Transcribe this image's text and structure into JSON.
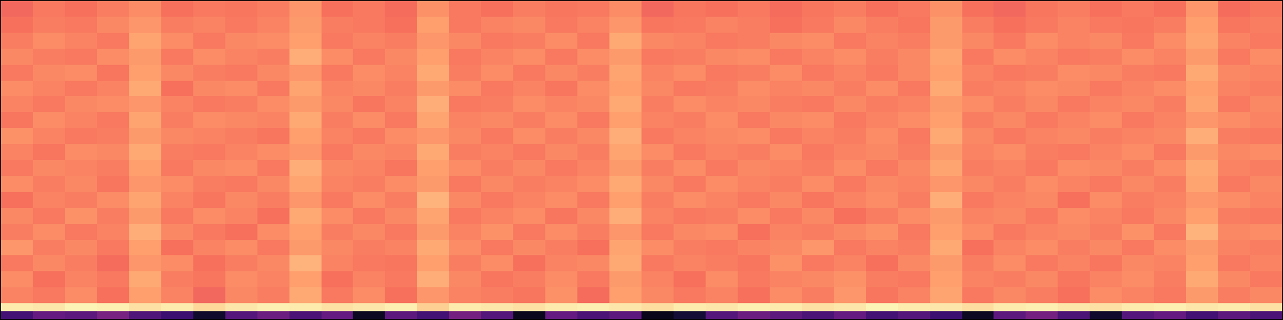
{
  "chart_data": {
    "type": "heatmap",
    "color": "magma",
    "tick_labels": false,
    "color_range": [
      0,
      100
    ],
    "xlim": [
      0,
      40
    ],
    "ylim": [
      0,
      40
    ],
    "x": [
      0,
      1,
      2,
      3,
      4,
      5,
      6,
      7,
      8,
      9,
      10,
      11,
      12,
      13,
      14,
      15,
      16,
      17,
      18,
      19,
      20,
      21,
      22,
      23,
      24,
      25,
      26,
      27,
      28,
      29,
      30,
      31,
      32,
      33,
      34,
      35,
      36,
      37,
      38,
      39,
      40
    ],
    "y": [
      0,
      1,
      2,
      4,
      6,
      8,
      10,
      12,
      14,
      16,
      18,
      20,
      22,
      24,
      26,
      28,
      30,
      32,
      34,
      36,
      38,
      40
    ],
    "cells": [
      [
        22,
        30,
        28,
        35,
        25,
        20,
        8,
        26,
        32,
        24,
        30,
        6,
        28,
        22,
        34,
        26,
        5,
        30,
        24,
        28,
        4,
        10,
        26,
        32,
        28,
        24,
        30,
        22,
        26,
        20,
        6,
        28,
        34,
        24,
        8,
        26,
        30,
        22,
        28,
        24
      ],
      [
        96,
        95,
        98,
        97,
        94,
        96,
        92,
        95,
        97,
        96,
        94,
        95,
        97,
        90,
        96,
        95,
        94,
        96,
        97,
        95,
        93,
        96,
        95,
        97,
        96,
        94,
        95,
        98,
        96,
        95,
        93,
        96,
        97,
        95,
        94,
        96,
        97,
        95,
        96,
        94
      ],
      [
        74,
        72,
        76,
        70,
        80,
        74,
        68,
        75,
        73,
        82,
        72,
        76,
        70,
        78,
        74,
        73,
        71,
        77,
        69,
        80,
        75,
        72,
        74,
        70,
        76,
        73,
        78,
        71,
        74,
        81,
        72,
        75,
        73,
        70,
        76,
        74,
        72,
        79,
        73,
        75
      ],
      [
        76,
        70,
        74,
        72,
        82,
        73,
        71,
        76,
        74,
        80,
        70,
        74,
        72,
        83,
        75,
        71,
        73,
        76,
        72,
        79,
        74,
        70,
        76,
        72,
        74,
        75,
        77,
        73,
        72,
        80,
        74,
        73,
        75,
        71,
        74,
        76,
        73,
        82,
        75,
        72
      ],
      [
        72,
        75,
        73,
        69,
        78,
        76,
        70,
        73,
        75,
        84,
        74,
        72,
        71,
        80,
        73,
        76,
        70,
        74,
        75,
        82,
        72,
        74,
        73,
        71,
        77,
        72,
        74,
        70,
        75,
        79,
        73,
        76,
        72,
        74,
        71,
        75,
        74,
        80,
        72,
        74
      ],
      [
        78,
        73,
        75,
        72,
        80,
        70,
        74,
        76,
        72,
        79,
        75,
        73,
        74,
        82,
        76,
        72,
        75,
        73,
        70,
        81,
        76,
        73,
        72,
        74,
        75,
        78,
        72,
        74,
        73,
        82,
        70,
        74,
        76,
        73,
        75,
        72,
        76,
        79,
        74,
        73
      ],
      [
        73,
        76,
        72,
        74,
        83,
        75,
        72,
        70,
        76,
        80,
        73,
        75,
        72,
        79,
        74,
        77,
        72,
        76,
        73,
        78,
        72,
        75,
        76,
        70,
        74,
        73,
        75,
        77,
        72,
        80,
        76,
        72,
        74,
        75,
        73,
        77,
        72,
        84,
        75,
        76
      ],
      [
        75,
        72,
        77,
        73,
        79,
        72,
        76,
        74,
        70,
        82,
        76,
        72,
        75,
        81,
        72,
        74,
        76,
        71,
        75,
        83,
        74,
        72,
        73,
        76,
        72,
        75,
        70,
        73,
        76,
        79,
        74,
        75,
        72,
        76,
        74,
        72,
        75,
        80,
        73,
        72
      ],
      [
        70,
        74,
        73,
        76,
        81,
        74,
        71,
        75,
        73,
        78,
        72,
        76,
        73,
        84,
        75,
        72,
        74,
        76,
        72,
        80,
        73,
        76,
        74,
        72,
        75,
        71,
        74,
        76,
        73,
        83,
        72,
        74,
        75,
        70,
        76,
        73,
        74,
        78,
        76,
        74
      ],
      [
        76,
        73,
        75,
        71,
        78,
        76,
        73,
        72,
        75,
        81,
        74,
        73,
        76,
        79,
        72,
        75,
        73,
        74,
        76,
        82,
        75,
        72,
        76,
        74,
        73,
        76,
        72,
        75,
        74,
        78,
        75,
        73,
        76,
        74,
        72,
        75,
        73,
        81,
        72,
        75
      ],
      [
        72,
        75,
        74,
        73,
        80,
        72,
        75,
        76,
        72,
        83,
        75,
        74,
        71,
        80,
        76,
        73,
        75,
        72,
        74,
        79,
        73,
        76,
        72,
        75,
        74,
        73,
        76,
        72,
        75,
        81,
        73,
        74,
        72,
        76,
        75,
        73,
        76,
        82,
        74,
        73
      ],
      [
        74,
        71,
        76,
        75,
        82,
        73,
        72,
        74,
        76,
        78,
        72,
        75,
        74,
        82,
        73,
        74,
        72,
        75,
        73,
        81,
        76,
        72,
        74,
        73,
        76,
        72,
        74,
        75,
        73,
        79,
        74,
        76,
        73,
        72,
        74,
        76,
        72,
        79,
        75,
        76
      ],
      [
        77,
        74,
        72,
        73,
        79,
        75,
        74,
        73,
        71,
        80,
        74,
        72,
        76,
        78,
        75,
        72,
        76,
        73,
        75,
        83,
        72,
        74,
        75,
        76,
        72,
        74,
        73,
        76,
        72,
        82,
        75,
        72,
        74,
        75,
        73,
        74,
        75,
        83,
        73,
        72
      ],
      [
        71,
        76,
        74,
        72,
        81,
        73,
        76,
        75,
        74,
        82,
        73,
        76,
        72,
        81,
        74,
        75,
        73,
        76,
        72,
        80,
        74,
        73,
        76,
        72,
        75,
        76,
        72,
        74,
        76,
        80,
        73,
        75,
        72,
        74,
        76,
        72,
        74,
        78,
        76,
        74
      ],
      [
        74,
        72,
        75,
        76,
        78,
        74,
        72,
        73,
        76,
        79,
        75,
        71,
        74,
        83,
        72,
        73,
        76,
        74,
        75,
        82,
        73,
        76,
        74,
        75,
        73,
        72,
        75,
        73,
        74,
        79,
        76,
        73,
        75,
        72,
        74,
        75,
        73,
        81,
        72,
        75
      ],
      [
        76,
        74,
        72,
        74,
        82,
        70,
        75,
        76,
        72,
        81,
        74,
        75,
        73,
        79,
        76,
        72,
        74,
        71,
        76,
        80,
        75,
        72,
        73,
        76,
        74,
        75,
        73,
        76,
        72,
        82,
        73,
        74,
        76,
        75,
        72,
        74,
        76,
        80,
        74,
        73
      ],
      [
        72,
        75,
        76,
        71,
        80,
        75,
        73,
        72,
        75,
        78,
        72,
        76,
        74,
        82,
        73,
        76,
        72,
        75,
        73,
        81,
        74,
        76,
        72,
        73,
        76,
        72,
        74,
        72,
        75,
        80,
        74,
        72,
        73,
        76,
        75,
        73,
        72,
        82,
        75,
        74
      ],
      [
        75,
        73,
        72,
        76,
        79,
        72,
        76,
        74,
        73,
        83,
        76,
        72,
        75,
        80,
        72,
        74,
        76,
        72,
        76,
        79,
        72,
        73,
        75,
        76,
        72,
        74,
        76,
        73,
        75,
        81,
        72,
        76,
        74,
        72,
        73,
        76,
        74,
        79,
        72,
        76
      ],
      [
        73,
        76,
        74,
        72,
        81,
        76,
        72,
        75,
        76,
        80,
        72,
        74,
        73,
        78,
        75,
        72,
        73,
        76,
        72,
        82,
        75,
        74,
        72,
        73,
        75,
        76,
        72,
        74,
        73,
        79,
        75,
        72,
        76,
        74,
        75,
        72,
        76,
        81,
        74,
        72
      ],
      [
        70,
        73,
        72,
        75,
        78,
        73,
        74,
        72,
        74,
        79,
        73,
        72,
        70,
        80,
        72,
        74,
        75,
        72,
        74,
        78,
        71,
        72,
        74,
        73,
        70,
        72,
        75,
        73,
        71,
        79,
        73,
        70,
        72,
        74,
        72,
        71,
        73,
        80,
        71,
        73
      ],
      [
        68,
        72,
        70,
        73,
        76,
        70,
        72,
        71,
        73,
        78,
        70,
        72,
        69,
        77,
        72,
        70,
        73,
        71,
        72,
        76,
        68,
        71,
        70,
        72,
        69,
        71,
        73,
        70,
        72,
        77,
        70,
        68,
        71,
        73,
        70,
        72,
        70,
        78,
        69,
        71
      ]
    ]
  }
}
